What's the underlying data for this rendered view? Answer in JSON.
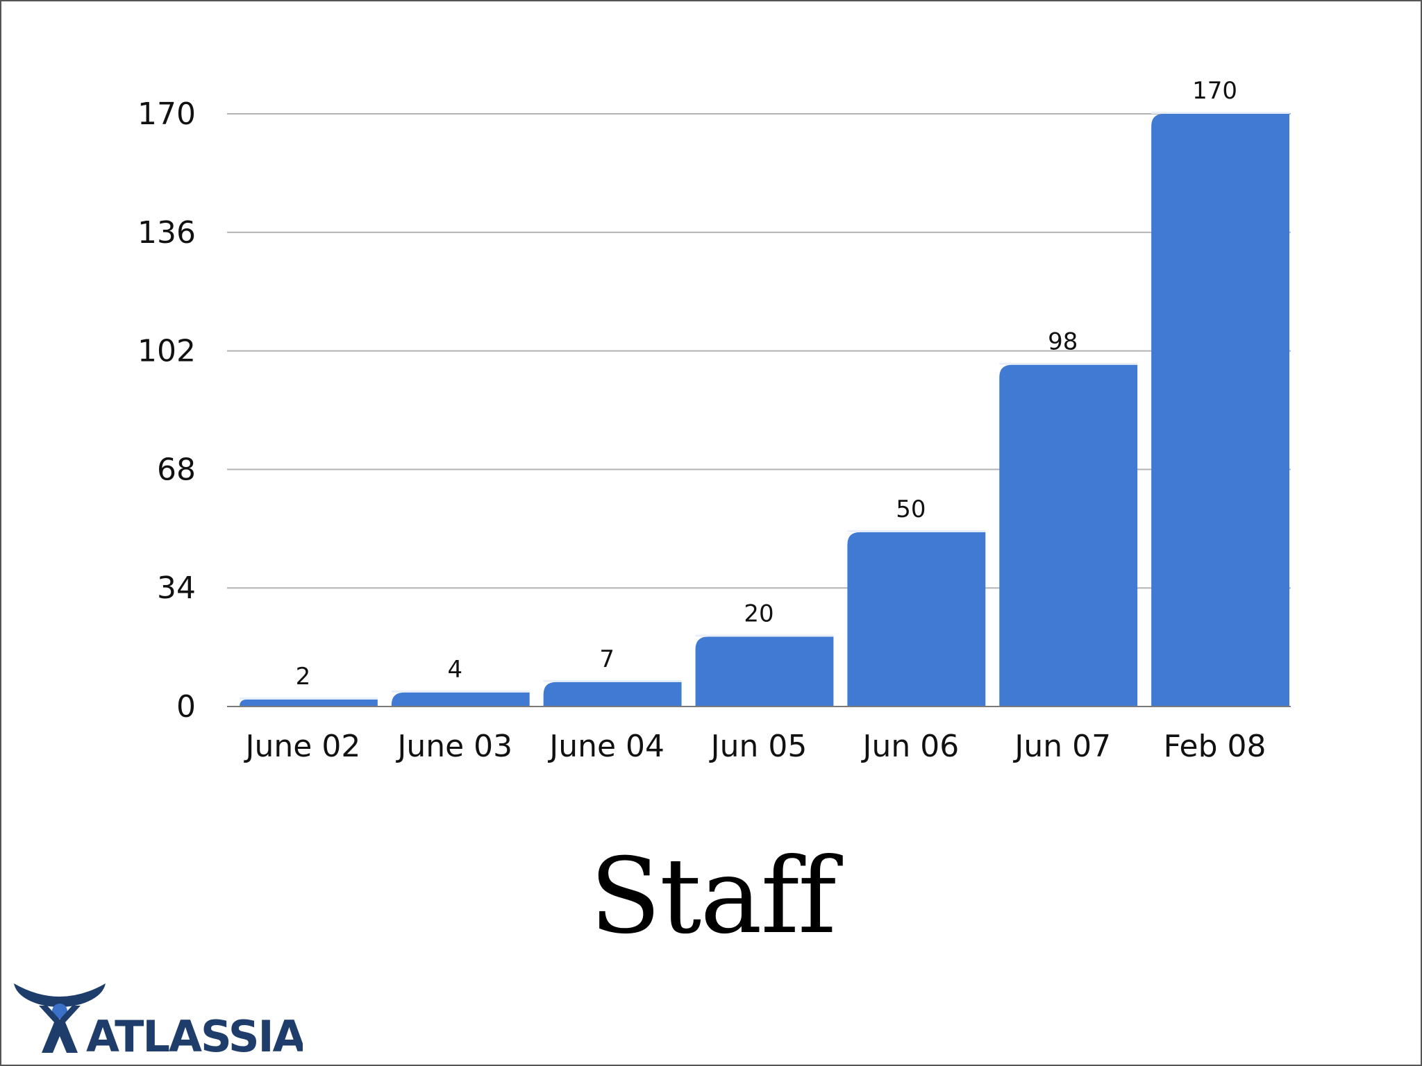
{
  "slide": {
    "title": "Staff",
    "logo_text": "ATLASSIAN",
    "logo_icon": "atlassian-figure-icon"
  },
  "colors": {
    "bar": "#417AD3",
    "bar_top": "#E8EFF9",
    "grid": "#B3B3B3",
    "logo": "#1F3D6B"
  },
  "chart_data": {
    "type": "bar",
    "title": "Staff",
    "xlabel": "",
    "ylabel": "",
    "categories": [
      "June 02",
      "June 03",
      "June 04",
      "Jun 05",
      "Jun 06",
      "Jun 07",
      "Feb 08"
    ],
    "values": [
      2,
      4,
      7,
      20,
      50,
      98,
      170
    ],
    "data_labels": [
      "2",
      "4",
      "7",
      "20",
      "50",
      "98",
      "170"
    ],
    "ylim": [
      0,
      170
    ],
    "yticks": [
      0,
      34,
      68,
      102,
      136,
      170
    ],
    "ytick_labels": [
      "0",
      "34",
      "68",
      "102",
      "136",
      "170"
    ],
    "grid": true,
    "legend": "none"
  }
}
